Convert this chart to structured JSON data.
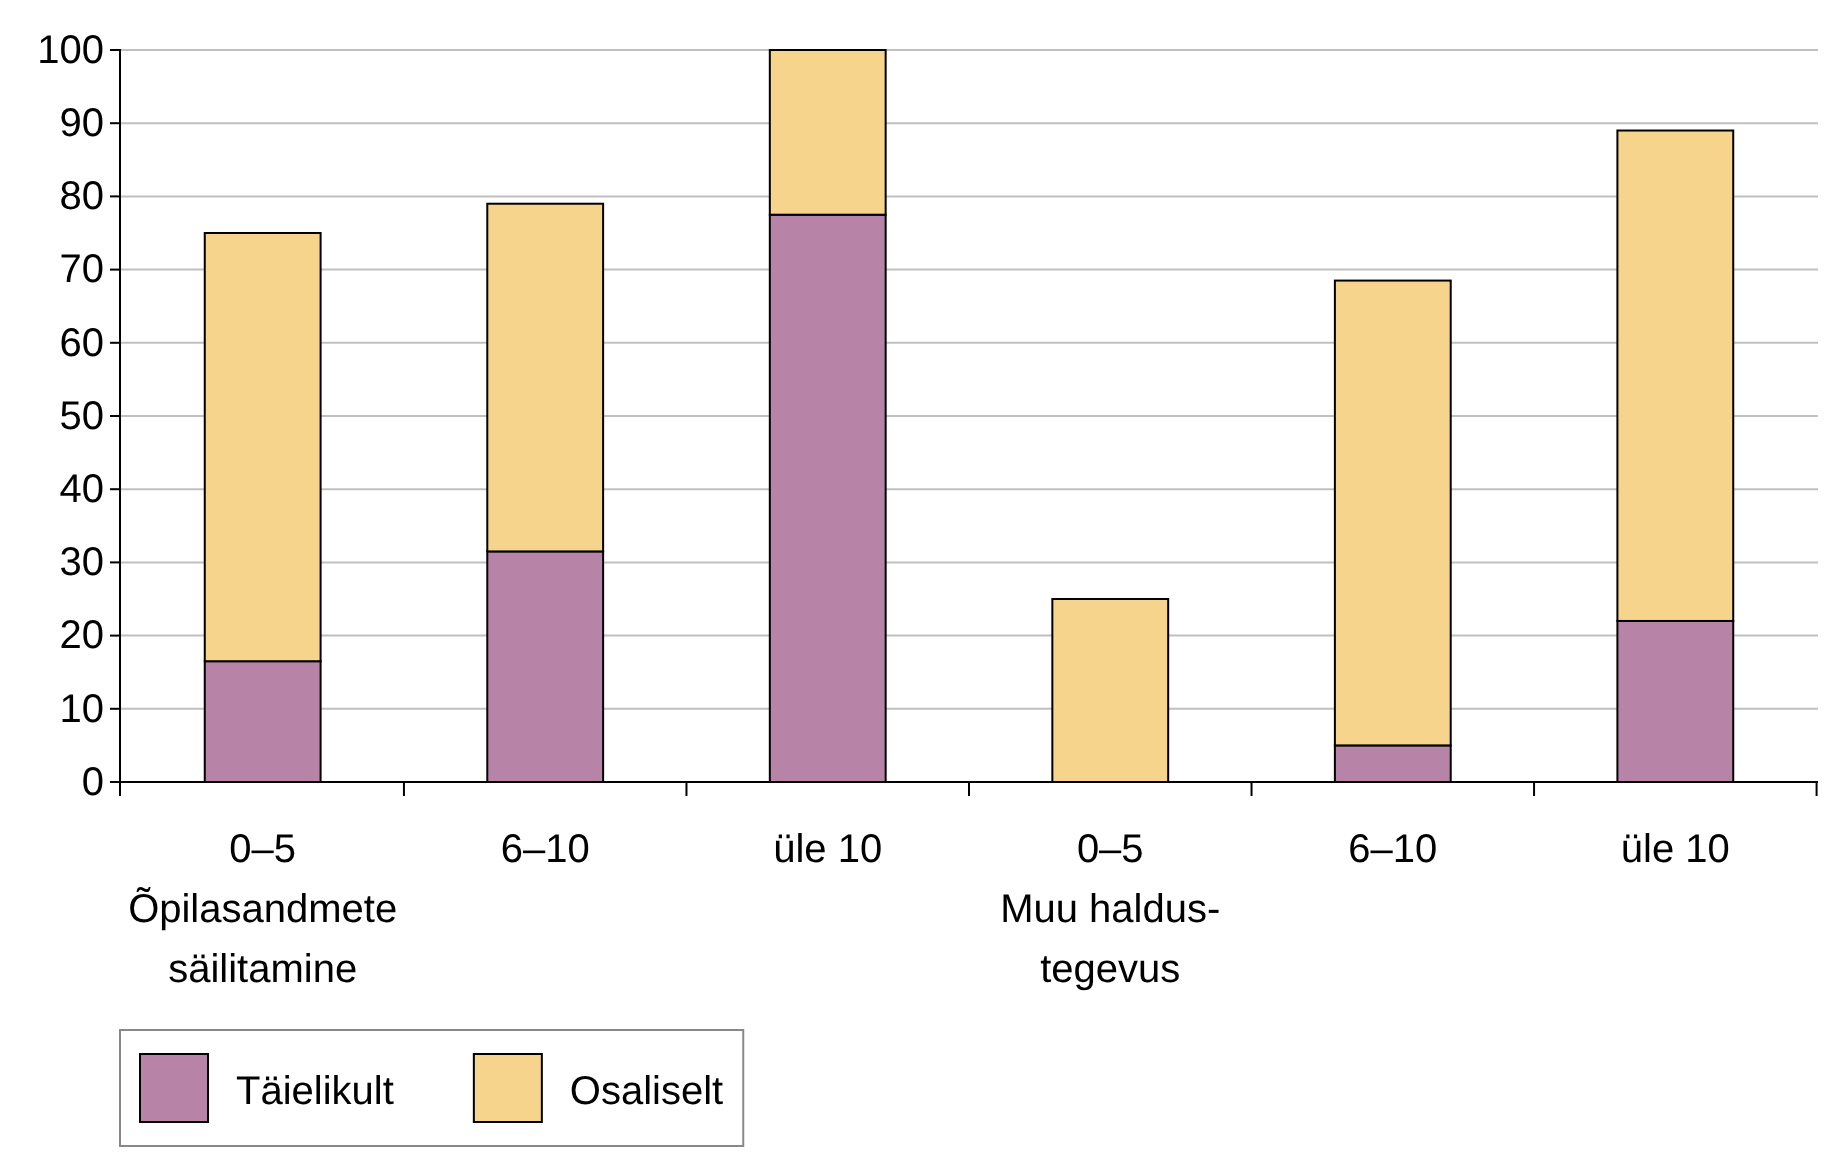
{
  "chart_data": {
    "type": "bar",
    "stacked": true,
    "categories": [
      "0–5\nÕpilasandmete\nsäilitamine",
      "6–10",
      "üle 10",
      "0–5\nMuu haldus-\ntegevus",
      "6–10",
      "üle 10"
    ],
    "series": [
      {
        "name": "Täielikult",
        "color": "#b784a7",
        "values": [
          16.5,
          31.5,
          77.5,
          0,
          5,
          22
        ]
      },
      {
        "name": "Osaliselt",
        "color": "#f7d48c",
        "values": [
          58.5,
          47.5,
          22.5,
          25,
          63.5,
          67
        ]
      }
    ],
    "ylim": [
      0,
      100
    ],
    "yticks": [
      0,
      10,
      20,
      30,
      40,
      50,
      60,
      70,
      80,
      90,
      100
    ],
    "grid": "y",
    "legend": "bottom left"
  }
}
